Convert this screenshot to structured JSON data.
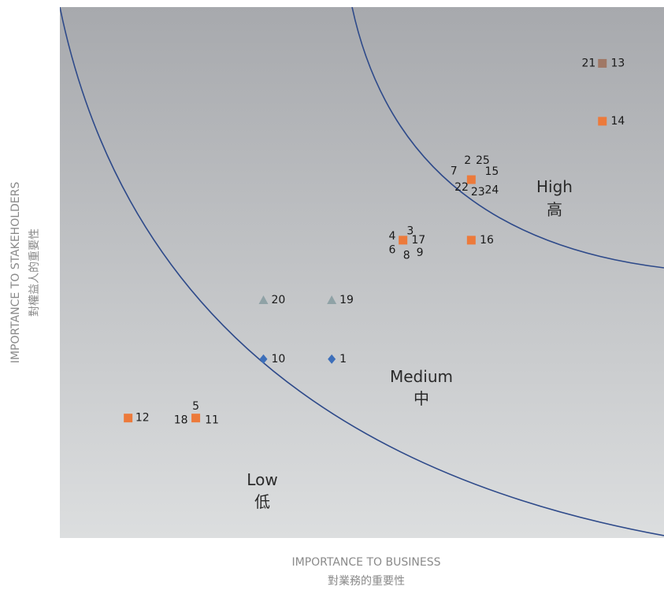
{
  "chart_data": {
    "type": "scatter",
    "xlabel": "IMPORTANCE TO BUSINESS",
    "xlabel_zh": "對業務的重要性",
    "ylabel": "IMPORTANCE TO STAKEHOLDERS",
    "ylabel_zh": "對權益人的重要性",
    "xlim": [
      0,
      10
    ],
    "ylim": [
      0,
      10
    ],
    "grid": false,
    "background_gradient": [
      "#a7a9ad",
      "#dcdedf"
    ],
    "curve_color": "#2e4a8a",
    "zones": [
      {
        "label": "Low",
        "label_zh": "低"
      },
      {
        "label": "Medium",
        "label_zh": "中"
      },
      {
        "label": "High",
        "label_zh": "高"
      }
    ],
    "marker_colors": {
      "square": "#ec7a3b",
      "triangle": "#8fa2a6",
      "diamond": "#3d6fba"
    },
    "markers": [
      {
        "x": 1.13,
        "y": 2.26,
        "shape": "square"
      },
      {
        "x": 2.25,
        "y": 2.26,
        "shape": "square"
      },
      {
        "x": 5.68,
        "y": 5.61,
        "shape": "square"
      },
      {
        "x": 6.81,
        "y": 5.61,
        "shape": "square"
      },
      {
        "x": 6.81,
        "y": 6.75,
        "shape": "square"
      },
      {
        "x": 8.98,
        "y": 7.85,
        "shape": "square"
      },
      {
        "x": 8.98,
        "y": 8.94,
        "shape": "square",
        "color": "#a07866"
      },
      {
        "x": 3.37,
        "y": 4.48,
        "shape": "triangle"
      },
      {
        "x": 4.5,
        "y": 4.48,
        "shape": "triangle"
      },
      {
        "x": 3.37,
        "y": 3.37,
        "shape": "diamond"
      },
      {
        "x": 4.5,
        "y": 3.37,
        "shape": "diamond"
      }
    ],
    "labels": [
      {
        "text": "12",
        "x": 1.25,
        "y": 2.26,
        "anchor": "start"
      },
      {
        "text": "5",
        "x": 2.25,
        "y": 2.48,
        "anchor": "middle"
      },
      {
        "text": "18",
        "x": 2.12,
        "y": 2.22,
        "anchor": "end"
      },
      {
        "text": "11",
        "x": 2.4,
        "y": 2.22,
        "anchor": "start"
      },
      {
        "text": "10",
        "x": 3.5,
        "y": 3.37,
        "anchor": "start"
      },
      {
        "text": "1",
        "x": 4.63,
        "y": 3.37,
        "anchor": "start"
      },
      {
        "text": "20",
        "x": 3.5,
        "y": 4.48,
        "anchor": "start"
      },
      {
        "text": "19",
        "x": 4.63,
        "y": 4.48,
        "anchor": "start"
      },
      {
        "text": "3",
        "x": 5.8,
        "y": 5.78,
        "anchor": "middle"
      },
      {
        "text": "4",
        "x": 5.56,
        "y": 5.68,
        "anchor": "end"
      },
      {
        "text": "17",
        "x": 5.82,
        "y": 5.61,
        "anchor": "start"
      },
      {
        "text": "6",
        "x": 5.56,
        "y": 5.42,
        "anchor": "end"
      },
      {
        "text": "8",
        "x": 5.74,
        "y": 5.32,
        "anchor": "middle"
      },
      {
        "text": "9",
        "x": 5.96,
        "y": 5.37,
        "anchor": "middle"
      },
      {
        "text": "16",
        "x": 6.95,
        "y": 5.61,
        "anchor": "start"
      },
      {
        "text": "2",
        "x": 6.75,
        "y": 7.11,
        "anchor": "middle"
      },
      {
        "text": "25",
        "x": 7.0,
        "y": 7.11,
        "anchor": "middle"
      },
      {
        "text": "7",
        "x": 6.58,
        "y": 6.91,
        "anchor": "end"
      },
      {
        "text": "15",
        "x": 7.15,
        "y": 6.9,
        "anchor": "middle"
      },
      {
        "text": "22",
        "x": 6.65,
        "y": 6.6,
        "anchor": "middle"
      },
      {
        "text": "23",
        "x": 6.92,
        "y": 6.51,
        "anchor": "middle"
      },
      {
        "text": "24",
        "x": 7.15,
        "y": 6.55,
        "anchor": "middle"
      },
      {
        "text": "14",
        "x": 9.12,
        "y": 7.85,
        "anchor": "start"
      },
      {
        "text": "21",
        "x": 8.87,
        "y": 8.94,
        "anchor": "end"
      },
      {
        "text": "13",
        "x": 9.12,
        "y": 8.94,
        "anchor": "start"
      }
    ]
  }
}
